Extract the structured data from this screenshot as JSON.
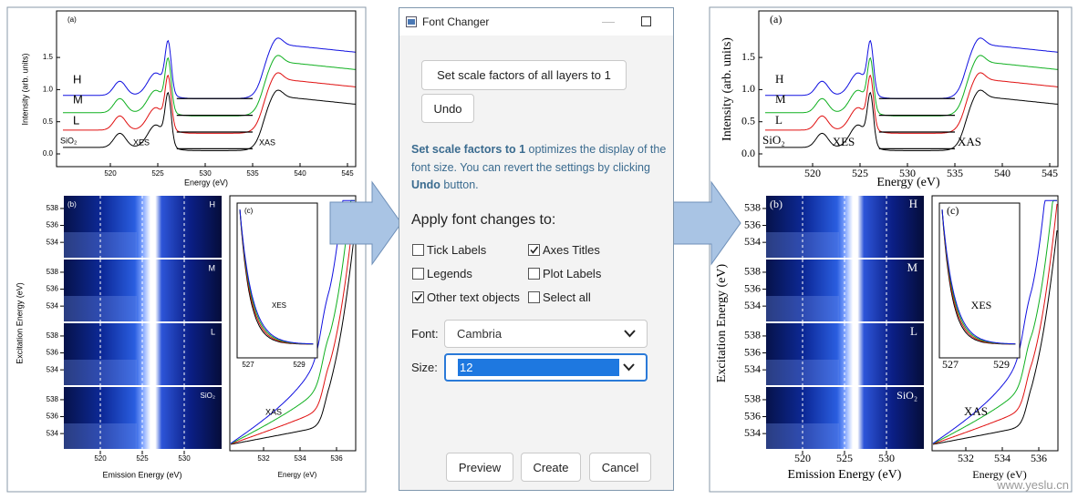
{
  "left_figure": {
    "panel_a": {
      "label": "(a)",
      "xticks": [
        "520",
        "525",
        "530",
        "535",
        "540",
        "545"
      ],
      "yticks": [
        "0.0",
        "0.5",
        "1.0",
        "1.5"
      ],
      "xlabel": "Energy (eV)",
      "ylabel": "Intensity (arb. units)",
      "series_labels": [
        "H",
        "M",
        "L",
        "SiO₂"
      ],
      "annotations": [
        "XES",
        "XAS"
      ]
    },
    "panel_b": {
      "label": "(b)",
      "row_tags": [
        "H",
        "M",
        "L",
        "SiO₂"
      ],
      "yticks": [
        "538",
        "536",
        "534"
      ],
      "xticks": [
        "520",
        "525",
        "530"
      ],
      "xlabel": "Emission Energy (eV)",
      "ylabel": "Excitation Energy (eV)"
    },
    "panel_c": {
      "label": "(c)",
      "inset_label": "XES",
      "inset_xticks": [
        "527",
        "529"
      ],
      "annotation": "XAS",
      "xticks": [
        "532",
        "534",
        "536"
      ],
      "xlabel": "Energy (eV)"
    }
  },
  "dialog": {
    "title": "Font Changer",
    "scale_button": "Set scale factors of all layers to 1",
    "undo_button": "Undo",
    "description": [
      {
        "text": "Set scale factors to 1",
        "bold": true
      },
      {
        "text": " optimizes the display of the font size. You can revert the settings by clicking ",
        "bold": false
      },
      {
        "text": "Undo",
        "bold": true
      },
      {
        "text": " button.",
        "bold": false
      }
    ],
    "apply_heading": "Apply font changes to:",
    "checkboxes": [
      {
        "label": "Tick Labels",
        "checked": false
      },
      {
        "label": "Axes Titles",
        "checked": true
      },
      {
        "label": "Legends",
        "checked": false
      },
      {
        "label": "Plot Labels",
        "checked": false
      },
      {
        "label": "Other text objects",
        "checked": true
      },
      {
        "label": "Select all",
        "checked": false
      }
    ],
    "font_label": "Font:",
    "font_value": "Cambria",
    "size_label": "Size:",
    "size_value": "12",
    "buttons": [
      "Preview",
      "Create",
      "Cancel"
    ]
  },
  "right_figure": {
    "panel_a": {
      "label": "(a)",
      "xticks": [
        "520",
        "525",
        "530",
        "535",
        "540",
        "545"
      ],
      "yticks": [
        "0.0",
        "0.5",
        "1.0",
        "1.5"
      ],
      "xlabel": "Energy (eV)",
      "ylabel": "Intensity (arb. units)",
      "series_labels": [
        "H",
        "M",
        "L",
        "SiO₂"
      ],
      "annotations": [
        "XES",
        "XAS"
      ]
    },
    "panel_b": {
      "label": "(b)",
      "row_tags": [
        "H",
        "M",
        "L",
        "SiO₂"
      ],
      "yticks": [
        "538",
        "536",
        "534"
      ],
      "xticks": [
        "520",
        "525",
        "530"
      ],
      "xlabel": "Emission Energy (eV)",
      "ylabel": "Excitation Energy (eV)"
    },
    "panel_c": {
      "label": "(c)",
      "inset_label": "XES",
      "inset_xticks": [
        "527",
        "529"
      ],
      "annotation": "XAS",
      "xticks": [
        "532",
        "534",
        "536"
      ],
      "xlabel": "Energy (eV)"
    }
  },
  "watermark": "www.yeslu.cn"
}
